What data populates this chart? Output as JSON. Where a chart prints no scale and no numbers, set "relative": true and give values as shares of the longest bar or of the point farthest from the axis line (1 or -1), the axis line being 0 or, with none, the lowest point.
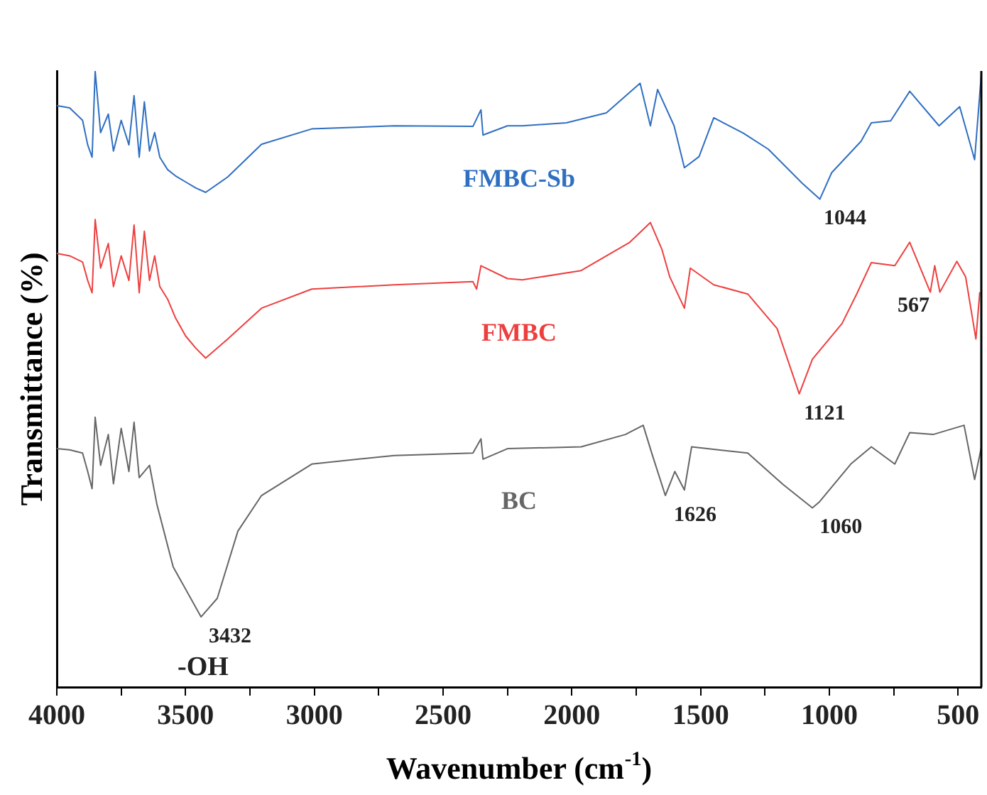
{
  "chart_data": {
    "type": "line",
    "xlabel": "Wavenumber (cm$^{-1}$)",
    "ylabel": "Transmittance (%)",
    "relative": true,
    "xlim": [
      4000,
      410
    ],
    "xticks": [
      4000,
      {
        "value": 3750,
        "label": null
      },
      3500,
      {
        "value": 3250,
        "label": null
      },
      3000,
      {
        "value": 2750,
        "label": null
      },
      2500,
      {
        "value": 2250,
        "label": null
      },
      2000,
      {
        "value": 1750,
        "label": null
      },
      1500,
      {
        "value": 1250,
        "label": null
      },
      1000,
      {
        "value": 750,
        "label": null
      },
      500
    ],
    "grid": false,
    "legend": false,
    "marker": "none",
    "line_style": "solid",
    "series": [
      {
        "name": "FMBC-Sb",
        "color": "#2f6fc1",
        "x": [
          4000,
          3950,
          3900,
          3880,
          3863,
          3851,
          3830,
          3800,
          3780,
          3750,
          3720,
          3700,
          3680,
          3660,
          3640,
          3620,
          3600,
          3570,
          3540,
          3500,
          3460,
          3422,
          3336,
          3205,
          3010,
          2690,
          2384,
          2353,
          2345,
          2250,
          2192,
          2021,
          1866,
          1735,
          1695,
          1667,
          1603,
          1563,
          1506,
          1449,
          1334,
          1237,
          1106,
          1037,
          991,
          877,
          837,
          762,
          688,
          574,
          494,
          436,
          410
        ],
        "values": [
          0.944,
          0.94,
          0.92,
          0.88,
          0.86,
          1.0,
          0.9,
          0.93,
          0.87,
          0.92,
          0.88,
          0.96,
          0.86,
          0.95,
          0.87,
          0.9,
          0.86,
          0.84,
          0.83,
          0.82,
          0.81,
          0.803,
          0.828,
          0.881,
          0.906,
          0.911,
          0.91,
          0.937,
          0.896,
          0.911,
          0.911,
          0.916,
          0.932,
          0.98,
          0.911,
          0.97,
          0.911,
          0.843,
          0.861,
          0.924,
          0.899,
          0.873,
          0.818,
          0.792,
          0.835,
          0.886,
          0.916,
          0.919,
          0.967,
          0.911,
          0.942,
          0.856,
          0.995
        ]
      },
      {
        "name": "FMBC",
        "color": "#ee3f3f",
        "x": [
          4000,
          3950,
          3900,
          3880,
          3863,
          3851,
          3830,
          3800,
          3780,
          3750,
          3720,
          3700,
          3680,
          3660,
          3640,
          3620,
          3600,
          3570,
          3540,
          3500,
          3460,
          3422,
          3336,
          3205,
          3010,
          2690,
          2384,
          2370,
          2353,
          2250,
          2192,
          1964,
          1775,
          1695,
          1650,
          1620,
          1563,
          1540,
          1449,
          1317,
          1203,
          1117,
          1066,
          951,
          894,
          837,
          746,
          688,
          608,
          591,
          571,
          505,
          471,
          431,
          416
        ],
        "values": [
          0.704,
          0.7,
          0.69,
          0.66,
          0.64,
          0.759,
          0.68,
          0.72,
          0.65,
          0.7,
          0.66,
          0.75,
          0.64,
          0.74,
          0.66,
          0.7,
          0.65,
          0.63,
          0.6,
          0.57,
          0.55,
          0.534,
          0.565,
          0.615,
          0.646,
          0.653,
          0.658,
          0.646,
          0.684,
          0.663,
          0.661,
          0.676,
          0.722,
          0.754,
          0.71,
          0.666,
          0.615,
          0.68,
          0.653,
          0.638,
          0.582,
          0.476,
          0.532,
          0.59,
          0.638,
          0.689,
          0.684,
          0.722,
          0.641,
          0.684,
          0.641,
          0.691,
          0.666,
          0.565,
          0.641
        ]
      },
      {
        "name": "BC",
        "color": "#666666",
        "x": [
          4000,
          3950,
          3900,
          3880,
          3863,
          3851,
          3830,
          3800,
          3780,
          3750,
          3720,
          3700,
          3680,
          3640,
          3611,
          3548,
          3440,
          3377,
          3297,
          3205,
          3010,
          2690,
          2384,
          2353,
          2345,
          2250,
          1964,
          1792,
          1723,
          1690,
          1637,
          1600,
          1563,
          1535,
          1431,
          1317,
          1180,
          1066,
          1040,
          917,
          837,
          746,
          688,
          597,
          477,
          436,
          410
        ],
        "values": [
          0.387,
          0.385,
          0.38,
          0.35,
          0.322,
          0.438,
          0.36,
          0.41,
          0.33,
          0.42,
          0.35,
          0.43,
          0.34,
          0.36,
          0.296,
          0.195,
          0.114,
          0.144,
          0.253,
          0.311,
          0.362,
          0.376,
          0.38,
          0.403,
          0.37,
          0.387,
          0.39,
          0.41,
          0.425,
          0.38,
          0.311,
          0.35,
          0.32,
          0.39,
          0.385,
          0.38,
          0.329,
          0.291,
          0.3,
          0.362,
          0.39,
          0.362,
          0.413,
          0.41,
          0.425,
          0.337,
          0.389
        ]
      }
    ],
    "annotations": [
      {
        "text": "1044",
        "x": 1044,
        "y": 0.792
      },
      {
        "text": "1121",
        "x": 1121,
        "y": 0.476
      },
      {
        "text": "567",
        "x": 567,
        "y": 0.641
      },
      {
        "text": "1626",
        "x": 1626,
        "y": 0.311
      },
      {
        "text": "1060",
        "x": 1060,
        "y": 0.291
      },
      {
        "text": "3432",
        "x": 3432,
        "y": 0.114
      },
      {
        "text": "-OH",
        "x": 3432,
        "y": 0.114
      }
    ]
  }
}
